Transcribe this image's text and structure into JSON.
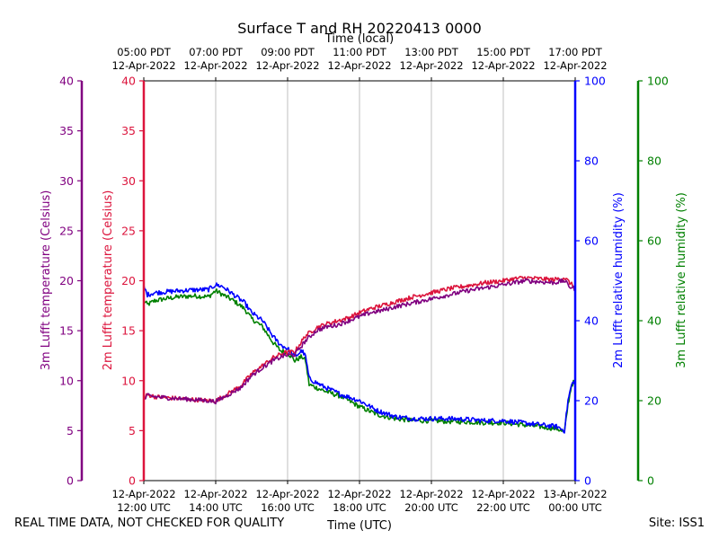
{
  "chart_data": {
    "type": "line",
    "title": "Surface T and RH 20220413 0000",
    "top_xlabel": "Time (local)",
    "xlabel": "Time (UTC)",
    "x_range_hours": [
      0,
      12
    ],
    "x_ticks_hours": [
      0,
      2,
      4,
      6,
      8,
      10,
      12
    ],
    "bottom_tick_labels": [
      [
        "12-Apr-2022",
        "12:00 UTC"
      ],
      [
        "12-Apr-2022",
        "14:00 UTC"
      ],
      [
        "12-Apr-2022",
        "16:00 UTC"
      ],
      [
        "12-Apr-2022",
        "18:00 UTC"
      ],
      [
        "12-Apr-2022",
        "20:00 UTC"
      ],
      [
        "12-Apr-2022",
        "22:00 UTC"
      ],
      [
        "13-Apr-2022",
        "00:00 UTC"
      ]
    ],
    "top_tick_labels": [
      [
        "05:00 PDT",
        "12-Apr-2022"
      ],
      [
        "07:00 PDT",
        "12-Apr-2022"
      ],
      [
        "09:00 PDT",
        "12-Apr-2022"
      ],
      [
        "11:00 PDT",
        "12-Apr-2022"
      ],
      [
        "13:00 PDT",
        "12-Apr-2022"
      ],
      [
        "15:00 PDT",
        "12-Apr-2022"
      ],
      [
        "17:00 PDT",
        "12-Apr-2022"
      ]
    ],
    "axes": {
      "t3m": {
        "label": "3m Lufft temperature (Celsius)",
        "ylim": [
          0,
          40
        ],
        "ticks": [
          0,
          5,
          10,
          15,
          20,
          25,
          30,
          35,
          40
        ],
        "color": "#800080"
      },
      "t2m": {
        "label": "2m Lufft temperature (Celsius)",
        "ylim": [
          0,
          40
        ],
        "ticks": [
          0,
          5,
          10,
          15,
          20,
          25,
          30,
          35,
          40
        ],
        "color": "#dc143c"
      },
      "rh2m": {
        "label": "2m Lufft relative humidity (%)",
        "ylim": [
          0,
          100
        ],
        "ticks": [
          0,
          20,
          40,
          60,
          80,
          100
        ],
        "color": "#0000ff"
      },
      "rh3m": {
        "label": "3m Lufft relative humidity (%)",
        "ylim": [
          0,
          100
        ],
        "ticks": [
          0,
          20,
          40,
          60,
          80,
          100
        ],
        "color": "#008000"
      }
    },
    "series": [
      {
        "name": "3m Lufft temperature",
        "axis": "t3m",
        "color": "#800080",
        "x": [
          0,
          0.1,
          0.3,
          0.6,
          1.0,
          1.4,
          1.8,
          2.0,
          2.3,
          2.7,
          3.0,
          3.3,
          3.6,
          3.9,
          4.2,
          4.5,
          4.8,
          5.1,
          5.4,
          5.7,
          6.0,
          6.3,
          6.6,
          7.0,
          7.5,
          8.0,
          8.5,
          9.0,
          9.5,
          10.0,
          10.3,
          10.6,
          11.0,
          11.4,
          11.7,
          11.85,
          12.0
        ],
        "y": [
          8.0,
          8.5,
          8.4,
          8.3,
          8.2,
          8.1,
          8.0,
          7.9,
          8.5,
          9.3,
          10.5,
          11.3,
          12.0,
          12.5,
          12.6,
          14.0,
          15.0,
          15.4,
          15.6,
          16.0,
          16.4,
          16.8,
          17.0,
          17.4,
          17.8,
          18.2,
          18.6,
          19.0,
          19.3,
          19.6,
          19.8,
          20.0,
          19.9,
          19.8,
          20.0,
          19.4,
          19.2
        ]
      },
      {
        "name": "2m Lufft temperature",
        "axis": "t2m",
        "color": "#dc143c",
        "x": [
          0,
          0.1,
          0.3,
          0.6,
          1.0,
          1.4,
          1.8,
          2.0,
          2.3,
          2.7,
          3.0,
          3.3,
          3.6,
          3.9,
          4.2,
          4.5,
          4.8,
          5.1,
          5.4,
          5.7,
          6.0,
          6.3,
          6.6,
          7.0,
          7.5,
          8.0,
          8.5,
          9.0,
          9.5,
          10.0,
          10.3,
          10.6,
          11.0,
          11.4,
          11.7,
          11.85,
          12.0
        ],
        "y": [
          8.2,
          8.6,
          8.4,
          8.3,
          8.2,
          8.1,
          8.0,
          8.0,
          8.6,
          9.5,
          10.7,
          11.5,
          12.3,
          12.8,
          12.9,
          14.5,
          15.3,
          15.7,
          16.0,
          16.3,
          16.8,
          17.2,
          17.5,
          17.9,
          18.4,
          18.8,
          19.2,
          19.5,
          19.8,
          20.0,
          20.2,
          20.3,
          20.2,
          20.1,
          20.3,
          19.8,
          19.3
        ]
      },
      {
        "name": "2m Lufft relative humidity",
        "axis": "rh2m",
        "color": "#0000ff",
        "x": [
          0,
          0.1,
          0.3,
          0.6,
          1.0,
          1.4,
          1.8,
          2.0,
          2.2,
          2.5,
          2.8,
          3.0,
          3.3,
          3.6,
          3.8,
          4.0,
          4.2,
          4.4,
          4.5,
          4.6,
          5.0,
          5.5,
          6.0,
          6.5,
          7.0,
          7.5,
          8.0,
          8.5,
          9.0,
          9.5,
          10.0,
          10.5,
          11.0,
          11.5,
          11.7,
          11.8,
          11.9,
          12.0
        ],
        "y": [
          48.5,
          46.5,
          47.0,
          47.2,
          47.5,
          47.7,
          47.8,
          49.0,
          48.5,
          46.5,
          44.5,
          42.0,
          40.0,
          36.0,
          34.0,
          33.0,
          31.0,
          32.5,
          31.0,
          25.5,
          23.5,
          21.5,
          20.0,
          17.5,
          16.0,
          15.5,
          15.5,
          15.5,
          15.3,
          15.0,
          15.0,
          14.5,
          14.0,
          13.5,
          12.5,
          20.0,
          24.0,
          25.0
        ]
      },
      {
        "name": "3m Lufft relative humidity",
        "axis": "rh3m",
        "color": "#008000",
        "x": [
          0,
          0.1,
          0.3,
          0.6,
          1.0,
          1.4,
          1.8,
          2.0,
          2.2,
          2.5,
          2.8,
          3.0,
          3.3,
          3.6,
          3.8,
          4.0,
          4.2,
          4.4,
          4.5,
          4.6,
          5.0,
          5.5,
          6.0,
          6.5,
          7.0,
          7.5,
          8.0,
          8.5,
          9.0,
          9.5,
          10.0,
          10.5,
          11.0,
          11.5,
          11.7,
          11.8,
          11.9,
          12.0
        ],
        "y": [
          45.0,
          44.0,
          45.0,
          45.5,
          46.0,
          46.2,
          46.0,
          47.5,
          46.5,
          45.0,
          43.0,
          40.5,
          38.5,
          34.5,
          32.5,
          32.0,
          30.0,
          31.0,
          30.0,
          24.0,
          22.5,
          21.0,
          18.5,
          16.5,
          15.5,
          15.0,
          15.0,
          14.8,
          14.7,
          14.5,
          14.5,
          14.0,
          13.5,
          13.0,
          12.0,
          19.0,
          24.0,
          25.0
        ]
      }
    ]
  },
  "footer": {
    "left": "REAL TIME DATA, NOT CHECKED FOR QUALITY",
    "right": "Site: ISS1"
  }
}
